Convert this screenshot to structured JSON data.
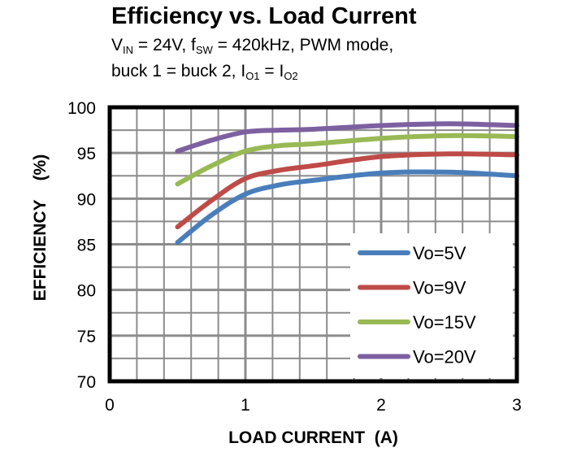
{
  "chart_data": {
    "type": "line",
    "title": "Efficiency vs. Load Current",
    "subtitle": {
      "line1": [
        "V",
        "IN",
        " = 24V, f",
        "SW",
        " = 420kHz, PWM mode,"
      ],
      "line2": [
        "buck 1 = buck 2, I",
        "O1",
        " = I",
        "O2",
        ""
      ]
    },
    "xlabel": "LOAD CURRENT  (A)",
    "ylabel": "EFFICIENCY    (%)",
    "xlim": [
      0,
      3
    ],
    "ylim": [
      70,
      100
    ],
    "xticks": [
      "0",
      "1",
      "2",
      "3"
    ],
    "yticks": [
      "70",
      "75",
      "80",
      "85",
      "90",
      "95",
      "100"
    ],
    "grid": true,
    "legend_position": "bottom-right",
    "series": [
      {
        "name": "Vo=5V",
        "color": "#4a7ebb",
        "x": [
          0.5,
          0.75,
          1,
          1.25,
          1.5,
          2,
          2.5,
          3
        ],
        "y": [
          85.2,
          88.2,
          90.5,
          91.5,
          92.0,
          92.8,
          92.9,
          92.5
        ]
      },
      {
        "name": "Vo=9V",
        "color": "#be4b48",
        "x": [
          0.5,
          0.75,
          1,
          1.25,
          1.5,
          2,
          2.5,
          3
        ],
        "y": [
          86.9,
          89.8,
          92.2,
          93.1,
          93.6,
          94.6,
          94.9,
          94.8
        ]
      },
      {
        "name": "Vo=15V",
        "color": "#98b954",
        "x": [
          0.5,
          0.75,
          1,
          1.25,
          1.5,
          2,
          2.5,
          3
        ],
        "y": [
          91.6,
          93.6,
          95.2,
          95.8,
          96.0,
          96.6,
          96.9,
          96.8
        ]
      },
      {
        "name": "Vo=20V",
        "color": "#7d60a0",
        "x": [
          0.5,
          0.75,
          1,
          1.25,
          1.5,
          2,
          2.5,
          3
        ],
        "y": [
          95.2,
          96.4,
          97.3,
          97.5,
          97.6,
          98.0,
          98.2,
          98.0
        ]
      }
    ]
  }
}
